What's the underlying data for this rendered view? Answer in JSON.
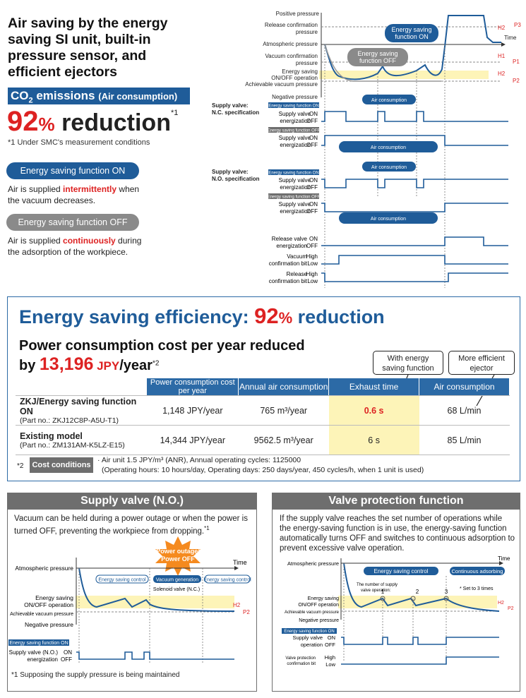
{
  "intro": {
    "title": "Air saving by the energy saving SI unit, built-in pressure sensor, and efficient ejectors",
    "co2_label": "CO",
    "co2_sub": "2",
    "co2_rest": " emissions",
    "co2_paren": "(Air consumption)",
    "reduction_pct": "92",
    "reduction_unit": "%",
    "reduction_word": " reduction",
    "reduction_note_mark": "*1",
    "note1": "*1  Under SMC's measurement conditions",
    "on_pill": "Energy saving function ON",
    "on_text_a": "Air is supplied ",
    "on_text_b": "intermittently",
    "on_text_c": " when the vacuum decreases.",
    "off_pill": "Energy saving function OFF",
    "off_text_a": "Air is supplied ",
    "off_text_b": "continuously",
    "off_text_c": " during the adsorption of the workpiece."
  },
  "timing": {
    "positive_pressure": "Positive pressure",
    "time": "Time",
    "release_confirmation_1": "Release confirmation",
    "release_confirmation_2": "pressure",
    "atmospheric": "Atmospheric pressure",
    "vacuum_confirmation_1": "Vacuum confirmation",
    "vacuum_confirmation_2": "pressure",
    "es_onoff_1": "Energy saving",
    "es_onoff_2": "ON/OFF operation",
    "achievable": "Achievable vacuum pressure",
    "negative": "Negative pressure",
    "callout_on_1": "Energy saving",
    "callout_on_2": "function ON",
    "callout_off_1": "Energy saving",
    "callout_off_2": "function OFF",
    "h2": "H2",
    "p3": "P3",
    "h1": "H1",
    "p1": "P1",
    "p2": "P2",
    "nc_1": "Supply valve:",
    "nc_2": "N.C. specification",
    "no_1": "Supply valve:",
    "no_2": "N.O. specification",
    "tag_on": "Energy saving function ON",
    "tag_off": "Energy saving function OFF",
    "sv_1": "Supply valve",
    "sv_2": "energization",
    "on": "ON",
    "off": "OFF",
    "air_consumption": "Air consumption",
    "rv_1": "Release valve",
    "rv_2": "energization",
    "vc_1": "Vacuum",
    "vc_2": "confirmation bit",
    "rc_1": "Release",
    "rc_2": "confirmation bit",
    "high": "High",
    "low": "Low"
  },
  "efficiency": {
    "heading_a": "Energy saving efficiency: ",
    "heading_pct": "92",
    "heading_unit": "%",
    "heading_b": " reduction",
    "sub_a": "Power consumption cost per year reduced",
    "sub_by": "by ",
    "sub_amount": "13,196",
    "sub_jpy": " JPY",
    "sub_year": "/year",
    "sub_mark": "*2",
    "callout_1a": "With energy",
    "callout_1b": "saving function",
    "callout_2a": "More efficient",
    "callout_2b": "ejector",
    "columns": [
      "",
      "Power consumption cost per year",
      "Annual air consumption",
      "Exhaust time",
      "Air consumption"
    ],
    "rows": [
      {
        "model": "ZKJ/Energy saving function ON",
        "part": "(Part no.: ZKJ12C8P-A5U-T1)",
        "power": "1,148 JPY/year",
        "annual": "765 m³/year",
        "exhaust": "0.6 s",
        "air": "68 L/min"
      },
      {
        "model": "Existing model",
        "part": "(Part no.: ZM131AM-K5LZ-E15)",
        "power": "14,344 JPY/year",
        "annual": "9562.5 m³/year",
        "exhaust": "6 s",
        "air": "85 L/min"
      }
    ],
    "cond_mark": "*2",
    "cond_label": "Cost conditions",
    "cond_1": "· Air unit 1.5 JPY/m³ (ANR), Annual operating cycles: 1125000",
    "cond_2": "(Operating hours: 10 hours/day, Operating days: 250 days/year, 450 cycles/h, when 1 unit is used)"
  },
  "supply_valve_panel": {
    "title": "Supply valve (N.O.)",
    "desc": "Vacuum can be held during a power outage or when the power is turned OFF, preventing the workpiece from dropping.",
    "desc_mark": "*1",
    "burst_1": "Power outage/",
    "burst_2": "Power OFF",
    "time": "Time",
    "atmospheric": "Atmospheric pressure",
    "es_control": "Energy saving control",
    "vacuum_gen": "Vacuum generation",
    "solenoid": "Solenoid valve (N.C.)",
    "es_onoff_1": "Energy saving",
    "es_onoff_2": "ON/OFF operation",
    "achievable": "Achievable vacuum pressure",
    "negative": "Negative pressure",
    "h2": "H2",
    "p2": "P2",
    "tag_on": "Energy saving function ON",
    "sv_1": "Supply valve (N.O.)",
    "sv_2": "energization",
    "on": "ON",
    "off": "OFF",
    "footnote": "*1  Supposing the supply pressure is being maintained"
  },
  "valve_protection_panel": {
    "title": "Valve protection function",
    "desc": "If the supply valve reaches the set number of operations while the energy-saving function is in use, the energy-saving function automatically turns OFF and switches to continuous adsorption to prevent excessive valve operation.",
    "atmospheric": "Atmospheric pressure",
    "time": "Time",
    "es_control": "Energy saving control",
    "continuous": "Continuous adsorbing",
    "ops_1": "The number of supply",
    "ops_2": "valve operation:",
    "n1": "1",
    "n2": "2",
    "n3": "3",
    "set_note": "*  Set to 3 times",
    "es_onoff_1": "Energy saving",
    "es_onoff_2": "ON/OFF operation",
    "achievable": "Achievable vacuum pressure",
    "negative": "Negative pressure",
    "h2": "H2",
    "p2": "P2",
    "tag_on": "Energy saving function ON",
    "sv_1": "Supply valve",
    "sv_2": "operation",
    "on": "ON",
    "off": "OFF",
    "vp_1": "Valve protection",
    "vp_2": "confirmation bit",
    "high": "High",
    "low": "Low"
  },
  "colors": {
    "accent": "#1f5c99",
    "red": "#dd2222",
    "yellow": "#fdf4b8",
    "gray": "#6e6e6e"
  }
}
